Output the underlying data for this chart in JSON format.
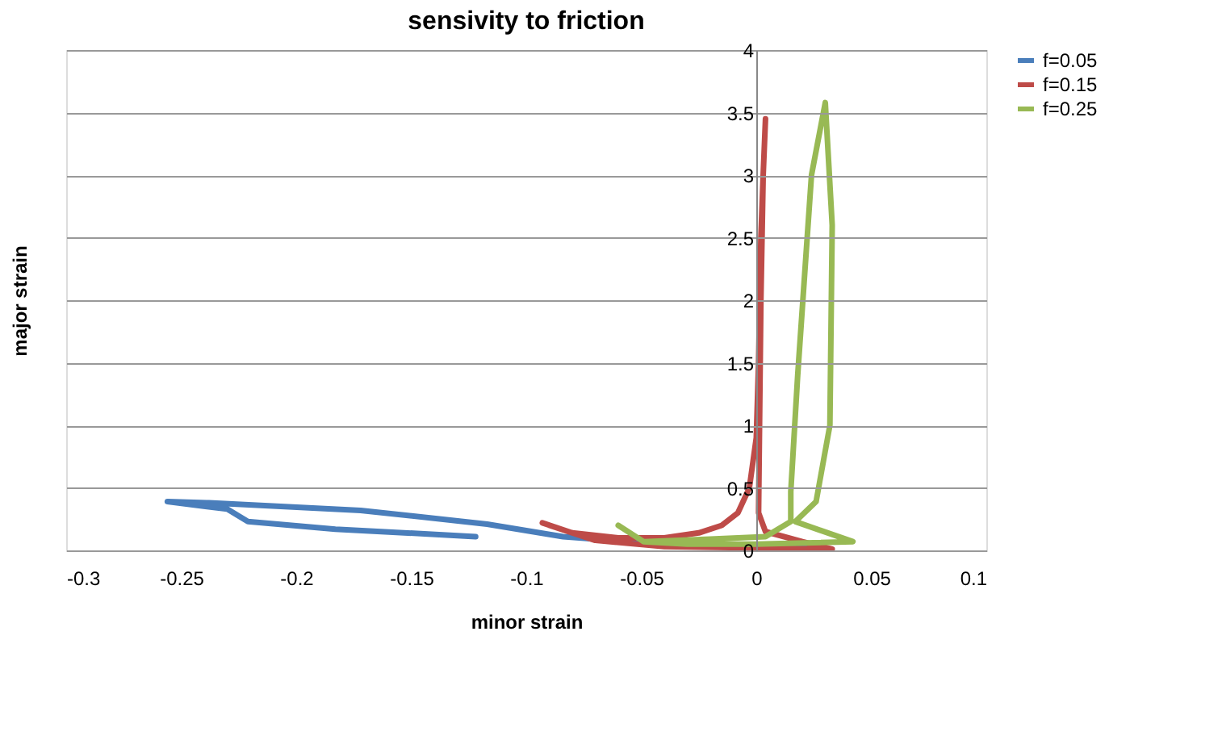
{
  "chart_data": {
    "type": "line",
    "title": "sensivity to friction",
    "xlabel": "minor strain",
    "ylabel": "major strain",
    "xlim": [
      -0.3,
      0.1
    ],
    "xticks": [
      -0.3,
      -0.25,
      -0.2,
      -0.15,
      -0.1,
      -0.05,
      0,
      0.05,
      0.1
    ],
    "ylim": [
      0,
      4
    ],
    "yticks": [
      0,
      0.5,
      1,
      1.5,
      2,
      2.5,
      3,
      3.5,
      4
    ],
    "grid": "y",
    "legend": "right",
    "marker": "none",
    "line_style": "solid",
    "series": [
      {
        "name": "f=0.05",
        "color": "#4a7ebb",
        "x": [
          -0.122,
          -0.183,
          -0.221,
          -0.23,
          -0.256,
          -0.238,
          -0.172,
          -0.117,
          -0.084,
          -0.04,
          0.028
        ],
        "values": [
          0.11,
          0.17,
          0.23,
          0.33,
          0.39,
          0.38,
          0.32,
          0.21,
          0.11,
          0.05,
          0.02
        ]
      },
      {
        "name": "f=0.15",
        "color": "#be4b48",
        "x": [
          -0.093,
          -0.08,
          -0.06,
          -0.04,
          -0.025,
          -0.015,
          -0.008,
          -0.003,
          0,
          0.001,
          0.002,
          0.003,
          0.004,
          0.003,
          0.002,
          0.001,
          0.004,
          0.02,
          0.033,
          0.0,
          -0.04,
          -0.07,
          -0.09
        ],
        "values": [
          0.22,
          0.14,
          0.1,
          0.1,
          0.14,
          0.2,
          0.3,
          0.5,
          0.9,
          1.5,
          2.5,
          3.0,
          3.45,
          3.0,
          2.0,
          0.3,
          0.15,
          0.07,
          0.01,
          0.02,
          0.03,
          0.08,
          0.2
        ]
      },
      {
        "name": "f=0.25",
        "color": "#98b954",
        "x": [
          -0.06,
          -0.049,
          -0.02,
          0.004,
          0.015,
          0.015,
          0.018,
          0.024,
          0.03,
          0.033,
          0.032,
          0.026,
          0.017,
          0.042,
          0.0,
          -0.03,
          -0.049
        ],
        "values": [
          0.2,
          0.07,
          0.09,
          0.11,
          0.23,
          0.47,
          1.4,
          3.0,
          3.58,
          2.6,
          1.0,
          0.39,
          0.23,
          0.07,
          0.05,
          0.05,
          0.07
        ]
      }
    ]
  }
}
